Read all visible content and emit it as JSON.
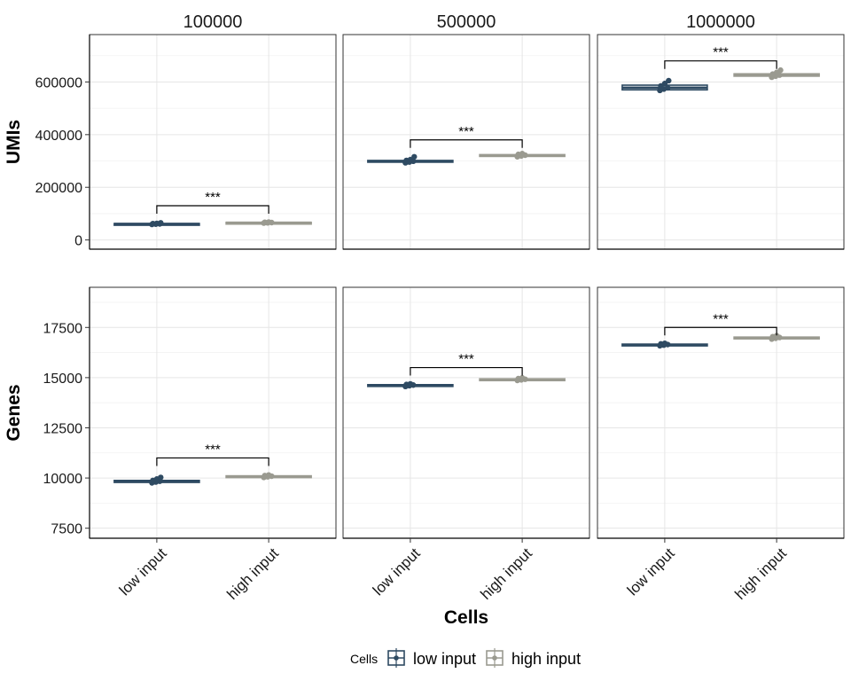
{
  "chart_data": {
    "type": "boxplot",
    "facet_columns": [
      "100000",
      "500000",
      "1000000"
    ],
    "categories": [
      "low input",
      "high input"
    ],
    "xlabel": "Cells",
    "legend": {
      "title": "Cells",
      "position": "bottom",
      "entries": [
        "low input",
        "high input"
      ]
    },
    "colors": {
      "low input": "#2e4a62",
      "high input": "#9a9a90"
    },
    "significance_label": "***",
    "grid": true,
    "rows": [
      {
        "ylabel": "UMIs",
        "ylim": [
          -35000,
          780000
        ],
        "yticks": [
          0,
          200000,
          400000,
          600000
        ],
        "ytick_labels": [
          "0",
          "200000",
          "400000",
          "600000"
        ],
        "panels": [
          {
            "facet": "100000",
            "boxes": [
              {
                "category": "low input",
                "q1": 59000,
                "median": 61000,
                "q3": 62500,
                "points": [
                  59000,
                  60000,
                  61000,
                  62000,
                  63000,
                  65000
                ]
              },
              {
                "category": "high input",
                "q1": 64000,
                "median": 65500,
                "q3": 67000,
                "points": [
                  64000,
                  65000,
                  66000,
                  67000,
                  68000
                ]
              }
            ],
            "bracket_top": 130000
          },
          {
            "facet": "500000",
            "boxes": [
              {
                "category": "low input",
                "q1": 296000,
                "median": 299000,
                "q3": 302000,
                "points": [
                  293000,
                  296000,
                  299000,
                  302000,
                  305000,
                  316000
                ]
              },
              {
                "category": "high input",
                "q1": 318000,
                "median": 321000,
                "q3": 324000,
                "points": [
                  316000,
                  319000,
                  322000,
                  325000,
                  328000
                ]
              }
            ],
            "bracket_top": 380000
          },
          {
            "facet": "1000000",
            "boxes": [
              {
                "category": "low input",
                "q1": 570000,
                "median": 578000,
                "q3": 588000,
                "points": [
                  568000,
                  573000,
                  578000,
                  585000,
                  594000,
                  605000
                ]
              },
              {
                "category": "high input",
                "q1": 622000,
                "median": 627000,
                "q3": 631000,
                "points": [
                  618000,
                  622000,
                  626000,
                  630000,
                  636000,
                  645000
                ]
              }
            ],
            "bracket_top": 680000
          }
        ]
      },
      {
        "ylabel": "Genes",
        "ylim": [
          7000,
          19500
        ],
        "yticks": [
          7500,
          10000,
          12500,
          15000,
          17500
        ],
        "ytick_labels": [
          "7500",
          "10000",
          "12500",
          "15000",
          "17500"
        ],
        "panels": [
          {
            "facet": "100000",
            "boxes": [
              {
                "category": "low input",
                "q1": 9780,
                "median": 9830,
                "q3": 9880,
                "points": [
                  9760,
                  9800,
                  9840,
                  9880,
                  9950,
                  10030
                ]
              },
              {
                "category": "high input",
                "q1": 10050,
                "median": 10080,
                "q3": 10110,
                "points": [
                  10030,
                  10060,
                  10090,
                  10120,
                  10150
                ]
              }
            ],
            "bracket_top": 11000
          },
          {
            "facet": "500000",
            "boxes": [
              {
                "category": "low input",
                "q1": 14590,
                "median": 14620,
                "q3": 14650,
                "points": [
                  14560,
                  14600,
                  14630,
                  14660,
                  14690
                ]
              },
              {
                "category": "high input",
                "q1": 14880,
                "median": 14910,
                "q3": 14940,
                "points": [
                  14860,
                  14890,
                  14920,
                  14950,
                  14990
                ]
              }
            ],
            "bracket_top": 15500
          },
          {
            "facet": "1000000",
            "boxes": [
              {
                "category": "low input",
                "q1": 16620,
                "median": 16640,
                "q3": 16670,
                "points": [
                  16590,
                  16620,
                  16650,
                  16680,
                  16710
                ]
              },
              {
                "category": "high input",
                "q1": 16960,
                "median": 16990,
                "q3": 17020,
                "points": [
                  16920,
                  16960,
                  17000,
                  17040,
                  17090
                ]
              }
            ],
            "bracket_top": 17500
          }
        ]
      }
    ]
  }
}
